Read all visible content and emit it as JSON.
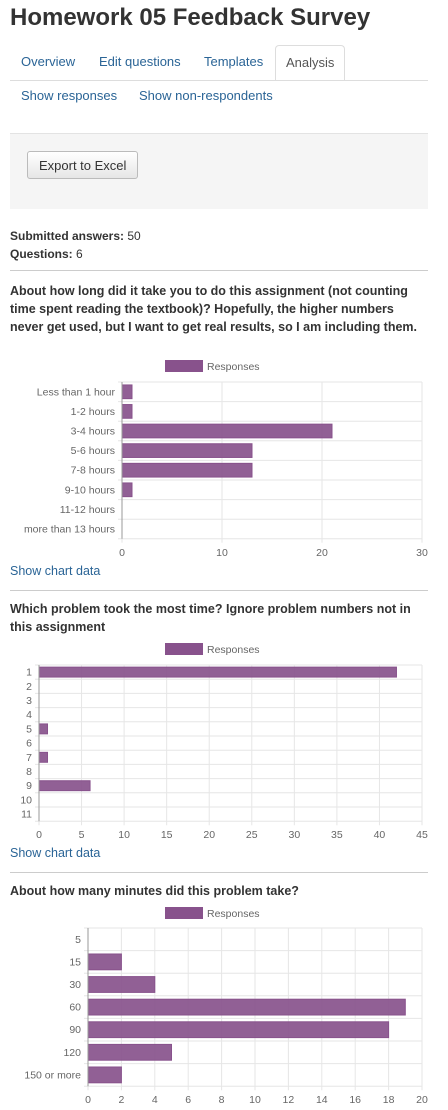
{
  "page": {
    "title": "Homework 05 Feedback Survey"
  },
  "tabs": [
    {
      "label": "Overview"
    },
    {
      "label": "Edit questions"
    },
    {
      "label": "Templates"
    },
    {
      "label": "Analysis",
      "active": true
    }
  ],
  "subtabs": [
    {
      "label": "Show responses"
    },
    {
      "label": "Show non-respondents"
    }
  ],
  "toolbar": {
    "export_label": "Export to Excel"
  },
  "summary": {
    "submitted_label": "Submitted answers:",
    "submitted_value": "50",
    "questions_label": "Questions:",
    "questions_value": "6"
  },
  "show_chart_data_label": "Show chart data",
  "colors": {
    "bar": "#88528c",
    "link": "#2a6496",
    "grid": "#e6e6e6"
  },
  "questions": [
    {
      "text": "About how long did it take you to do this assignment (not counting time spent reading the textbook)? Hopefully, the higher numbers never get used, but I want to get real results, so I am including them.",
      "chart_data": {
        "type": "bar",
        "orientation": "horizontal",
        "categories": [
          "Less than 1 hour",
          "1-2 hours",
          "3-4 hours",
          "5-6 hours",
          "7-8 hours",
          "9-10 hours",
          "11-12 hours",
          "more than 13 hours"
        ],
        "series": [
          {
            "name": "Responses",
            "values": [
              1,
              1,
              21,
              13,
              13,
              1,
              0,
              0
            ]
          }
        ],
        "xlim": [
          0,
          30
        ],
        "xticks": [
          0,
          10,
          20,
          30
        ],
        "grid": true,
        "legend": "top"
      }
    },
    {
      "text": "Which problem took the most time? Ignore problem numbers not in this assignment",
      "chart_data": {
        "type": "bar",
        "orientation": "horizontal",
        "categories": [
          "1",
          "2",
          "3",
          "4",
          "5",
          "6",
          "7",
          "8",
          "9",
          "10",
          "11"
        ],
        "series": [
          {
            "name": "Responses",
            "values": [
              42,
              0,
              0,
              0,
              1,
              0,
              1,
              0,
              6,
              0,
              0
            ]
          }
        ],
        "xlim": [
          0,
          45
        ],
        "xticks": [
          0,
          5,
          10,
          15,
          20,
          25,
          30,
          35,
          40,
          45
        ],
        "grid": true,
        "legend": "top"
      }
    },
    {
      "text": "About how many minutes did this problem take?",
      "chart_data": {
        "type": "bar",
        "orientation": "horizontal",
        "categories": [
          "5",
          "15",
          "30",
          "60",
          "90",
          "120",
          "150 or more"
        ],
        "series": [
          {
            "name": "Responses",
            "values": [
              0,
              2,
              4,
              19,
              18,
              5,
              2
            ]
          }
        ],
        "xlim": [
          0,
          20
        ],
        "xticks": [
          0,
          2,
          4,
          6,
          8,
          10,
          12,
          14,
          16,
          18,
          20
        ],
        "grid": true,
        "legend": "top"
      }
    }
  ]
}
